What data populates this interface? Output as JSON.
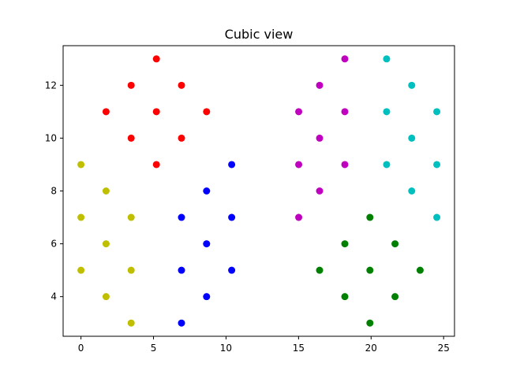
{
  "chart_data": {
    "type": "scatter",
    "title": "Cubic view",
    "xlabel": "",
    "ylabel": "",
    "xlim": [
      -1.23,
      25.75
    ],
    "ylim": [
      2.5,
      13.5
    ],
    "xticks": [
      0,
      5,
      10,
      15,
      20,
      25
    ],
    "yticks": [
      4,
      6,
      8,
      10,
      12
    ],
    "grid": false,
    "series": [
      {
        "color": "#ff0000",
        "points": [
          [
            5.2,
            13
          ],
          [
            3.46,
            12
          ],
          [
            6.93,
            12
          ],
          [
            1.73,
            11
          ],
          [
            5.2,
            11
          ],
          [
            8.66,
            11
          ],
          [
            3.46,
            10
          ],
          [
            6.93,
            10
          ],
          [
            5.2,
            9
          ]
        ]
      },
      {
        "color": "#bfbf00",
        "points": [
          [
            0,
            9
          ],
          [
            1.73,
            8
          ],
          [
            0,
            7
          ],
          [
            3.46,
            7
          ],
          [
            1.73,
            6
          ],
          [
            0,
            5
          ],
          [
            3.46,
            5
          ],
          [
            1.73,
            4
          ],
          [
            3.46,
            3
          ]
        ]
      },
      {
        "color": "#0000ff",
        "points": [
          [
            10.39,
            9
          ],
          [
            8.66,
            8
          ],
          [
            6.93,
            7
          ],
          [
            10.39,
            7
          ],
          [
            8.66,
            6
          ],
          [
            6.93,
            5
          ],
          [
            10.39,
            5
          ],
          [
            8.66,
            4
          ],
          [
            6.93,
            3
          ]
        ]
      },
      {
        "color": "#bf00bf",
        "points": [
          [
            18.19,
            13
          ],
          [
            16.45,
            12
          ],
          [
            15.01,
            11
          ],
          [
            18.19,
            11
          ],
          [
            16.45,
            10
          ],
          [
            15.01,
            9
          ],
          [
            18.19,
            9
          ],
          [
            16.45,
            8
          ],
          [
            15.01,
            7
          ]
        ]
      },
      {
        "color": "#00bfbf",
        "points": [
          [
            21.07,
            13
          ],
          [
            22.8,
            12
          ],
          [
            21.07,
            11
          ],
          [
            24.53,
            11
          ],
          [
            22.8,
            10
          ],
          [
            21.07,
            9
          ],
          [
            24.53,
            9
          ],
          [
            22.8,
            8
          ],
          [
            24.53,
            7
          ]
        ]
      },
      {
        "color": "#008000",
        "points": [
          [
            19.92,
            7
          ],
          [
            18.19,
            6
          ],
          [
            21.65,
            6
          ],
          [
            16.45,
            5
          ],
          [
            19.92,
            5
          ],
          [
            23.38,
            5
          ],
          [
            18.19,
            4
          ],
          [
            21.65,
            4
          ],
          [
            19.92,
            3
          ]
        ]
      }
    ]
  }
}
